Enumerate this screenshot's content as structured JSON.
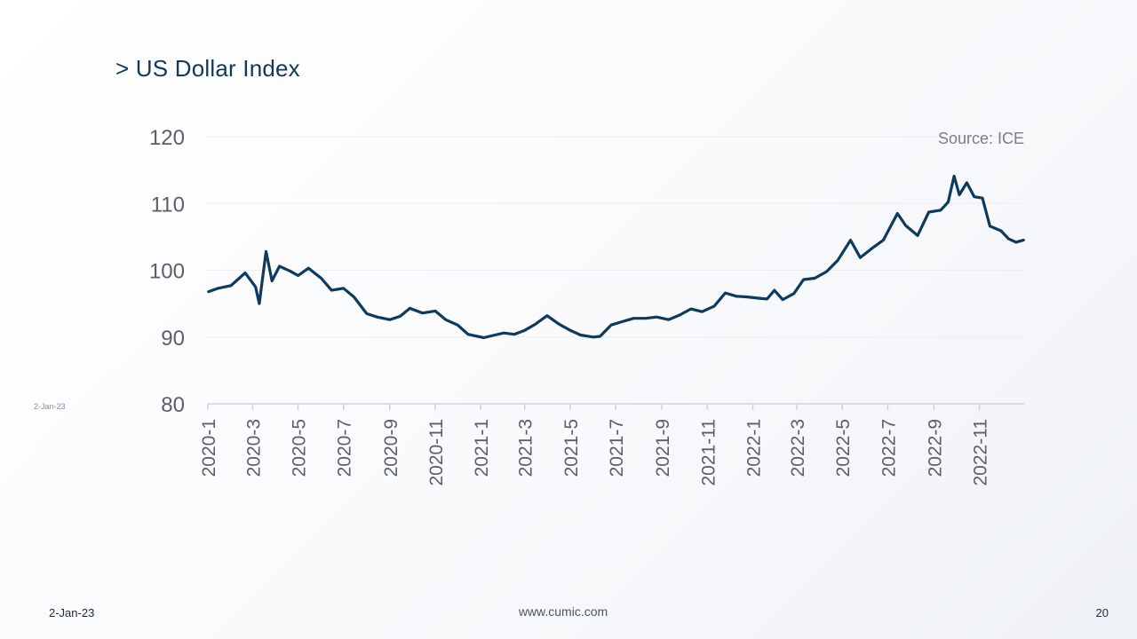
{
  "slide": {
    "title": "> US Dollar Index",
    "side_date": "2-Jan-23",
    "footer_date": "2-Jan-23",
    "footer_url": "www.cumic.com",
    "page_number": "20"
  },
  "chart_data": {
    "type": "line",
    "title": "",
    "source": "Source: ICE",
    "xlabel": "",
    "ylabel": "",
    "ylim": [
      80,
      120
    ],
    "yticks": [
      80,
      90,
      100,
      110,
      120
    ],
    "xlim": [
      "2020-01",
      "2022-12"
    ],
    "xticks": [
      "2020-1",
      "2020-3",
      "2020-5",
      "2020-7",
      "2020-9",
      "2020-11",
      "2021-1",
      "2021-3",
      "2021-5",
      "2021-7",
      "2021-9",
      "2021-11",
      "2022-1",
      "2022-3",
      "2022-5",
      "2022-7",
      "2022-9",
      "2022-11"
    ],
    "grid": true,
    "legend": "none",
    "line_color": "#0e3a5e",
    "series": [
      {
        "values": [
          [
            "2020-01-02",
            96.8
          ],
          [
            "2020-01-15",
            97.3
          ],
          [
            "2020-02-01",
            97.7
          ],
          [
            "2020-02-20",
            99.6
          ],
          [
            "2020-03-05",
            97.5
          ],
          [
            "2020-03-10",
            95.0
          ],
          [
            "2020-03-19",
            102.8
          ],
          [
            "2020-03-27",
            98.4
          ],
          [
            "2020-04-06",
            100.6
          ],
          [
            "2020-04-20",
            99.9
          ],
          [
            "2020-05-01",
            99.2
          ],
          [
            "2020-05-15",
            100.3
          ],
          [
            "2020-06-01",
            98.8
          ],
          [
            "2020-06-15",
            97.0
          ],
          [
            "2020-07-01",
            97.3
          ],
          [
            "2020-07-15",
            96.0
          ],
          [
            "2020-08-01",
            93.5
          ],
          [
            "2020-08-15",
            93.0
          ],
          [
            "2020-09-01",
            92.6
          ],
          [
            "2020-09-15",
            93.1
          ],
          [
            "2020-09-28",
            94.3
          ],
          [
            "2020-10-15",
            93.6
          ],
          [
            "2020-11-01",
            93.9
          ],
          [
            "2020-11-15",
            92.6
          ],
          [
            "2020-12-01",
            91.8
          ],
          [
            "2020-12-15",
            90.4
          ],
          [
            "2021-01-05",
            89.9
          ],
          [
            "2021-01-20",
            90.3
          ],
          [
            "2021-02-01",
            90.6
          ],
          [
            "2021-02-15",
            90.4
          ],
          [
            "2021-03-01",
            91.0
          ],
          [
            "2021-03-15",
            91.9
          ],
          [
            "2021-03-31",
            93.2
          ],
          [
            "2021-04-15",
            92.0
          ],
          [
            "2021-05-01",
            91.0
          ],
          [
            "2021-05-15",
            90.3
          ],
          [
            "2021-06-01",
            90.0
          ],
          [
            "2021-06-10",
            90.1
          ],
          [
            "2021-06-25",
            91.8
          ],
          [
            "2021-07-10",
            92.3
          ],
          [
            "2021-07-25",
            92.8
          ],
          [
            "2021-08-10",
            92.8
          ],
          [
            "2021-08-25",
            93.0
          ],
          [
            "2021-09-10",
            92.6
          ],
          [
            "2021-09-25",
            93.3
          ],
          [
            "2021-10-10",
            94.2
          ],
          [
            "2021-10-25",
            93.8
          ],
          [
            "2021-11-10",
            94.6
          ],
          [
            "2021-11-25",
            96.6
          ],
          [
            "2021-12-10",
            96.1
          ],
          [
            "2021-12-25",
            96.0
          ],
          [
            "2022-01-10",
            95.8
          ],
          [
            "2022-01-20",
            95.7
          ],
          [
            "2022-01-30",
            97.0
          ],
          [
            "2022-02-10",
            95.6
          ],
          [
            "2022-02-25",
            96.5
          ],
          [
            "2022-03-10",
            98.6
          ],
          [
            "2022-03-25",
            98.8
          ],
          [
            "2022-04-10",
            99.8
          ],
          [
            "2022-04-25",
            101.5
          ],
          [
            "2022-05-12",
            104.5
          ],
          [
            "2022-05-25",
            101.9
          ],
          [
            "2022-06-10",
            103.3
          ],
          [
            "2022-06-25",
            104.5
          ],
          [
            "2022-07-14",
            108.5
          ],
          [
            "2022-07-25",
            106.7
          ],
          [
            "2022-08-10",
            105.2
          ],
          [
            "2022-08-25",
            108.7
          ],
          [
            "2022-09-10",
            109.0
          ],
          [
            "2022-09-20",
            110.2
          ],
          [
            "2022-09-28",
            114.1
          ],
          [
            "2022-10-05",
            111.3
          ],
          [
            "2022-10-15",
            113.1
          ],
          [
            "2022-10-25",
            111.0
          ],
          [
            "2022-11-05",
            110.8
          ],
          [
            "2022-11-15",
            106.6
          ],
          [
            "2022-11-30",
            105.9
          ],
          [
            "2022-12-10",
            104.7
          ],
          [
            "2022-12-20",
            104.2
          ],
          [
            "2022-12-30",
            104.5
          ]
        ]
      }
    ]
  }
}
